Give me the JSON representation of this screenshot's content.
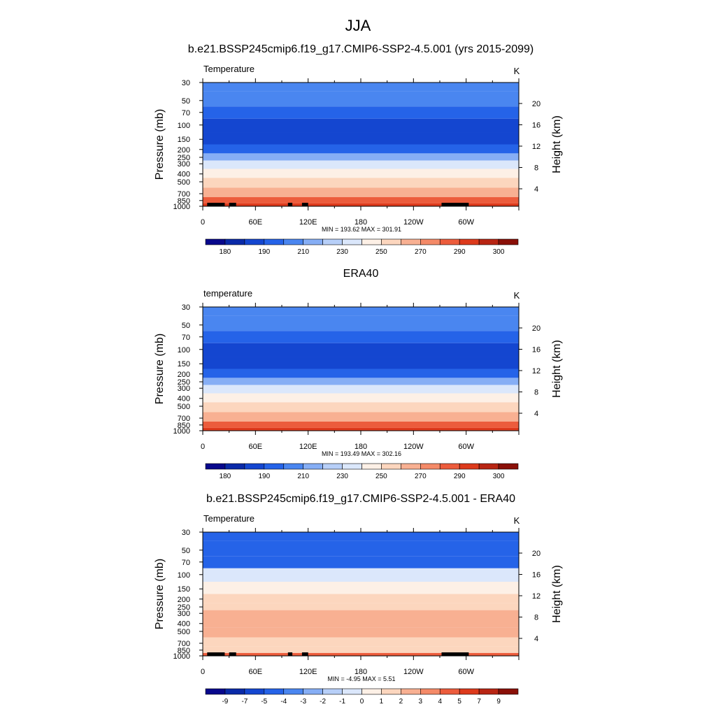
{
  "figure": {
    "title": "JJA"
  },
  "colors": {
    "temp_levels": [
      "#08088c",
      "#0a2aa8",
      "#1446d0",
      "#2563e8",
      "#4a86f0",
      "#86aef5",
      "#b7cff8",
      "#dbe7fb",
      "#fdf0e6",
      "#fcd6be",
      "#f8b092",
      "#f48a68",
      "#ec5c3c",
      "#dd3a1c",
      "#b82513",
      "#8a1008"
    ],
    "diff_levels": [
      "#08088c",
      "#0a2aa8",
      "#1446d0",
      "#2563e8",
      "#4a86f0",
      "#86aef5",
      "#b7cff8",
      "#dbe7fb",
      "#fdf0e6",
      "#fcd6be",
      "#f8b092",
      "#f48a68",
      "#ec5c3c",
      "#dd3a1c",
      "#b82513",
      "#8a1008"
    ],
    "topography": "#000000"
  },
  "chart_data": [
    {
      "type": "heatmap",
      "title": "b.e21.BSSP245cmip6.f19_g17.CMIP6-SSP2-4.5.001 (yrs 2015-2099)",
      "left_label": "Temperature",
      "units": "K",
      "ylabel": "Pressure (mb)",
      "ylabel_right": "Height (km)",
      "x_ticks": [
        "0",
        "60E",
        "120E",
        "180",
        "120W",
        "60W"
      ],
      "y_ticks": [
        "30",
        "50",
        "70",
        "100",
        "150",
        "200",
        "250",
        "300",
        "400",
        "500",
        "700",
        "850",
        "1000"
      ],
      "right_ticks": [
        "20",
        "16",
        "12",
        "8",
        "4"
      ],
      "stats": "MIN = 193.62  MAX = 301.91",
      "colorbar_labels": [
        "180",
        "190",
        "210",
        "230",
        "250",
        "270",
        "290",
        "300"
      ],
      "color_key": "temp_levels",
      "pressure_levels": [
        30,
        50,
        70,
        100,
        150,
        200,
        250,
        300,
        400,
        500,
        700,
        850,
        1000
      ],
      "level_color_index": [
        4,
        4,
        3,
        2,
        2,
        3,
        5,
        7,
        8,
        9,
        10,
        12,
        13
      ],
      "topography_lons": [
        [
          5,
          25
        ],
        [
          30,
          38
        ],
        [
          97,
          102
        ],
        [
          113,
          120
        ],
        [
          272,
          303
        ]
      ]
    },
    {
      "type": "heatmap",
      "title": "ERA40",
      "left_label": "temperature",
      "units": "K",
      "ylabel": "Pressure (mb)",
      "ylabel_right": "Height (km)",
      "x_ticks": [
        "0",
        "60E",
        "120E",
        "180",
        "120W",
        "60W"
      ],
      "y_ticks": [
        "30",
        "50",
        "70",
        "100",
        "150",
        "200",
        "250",
        "300",
        "400",
        "500",
        "700",
        "850",
        "1000"
      ],
      "right_ticks": [
        "20",
        "16",
        "12",
        "8",
        "4"
      ],
      "stats": "MIN = 193.49  MAX = 302.16",
      "colorbar_labels": [
        "180",
        "190",
        "210",
        "230",
        "250",
        "270",
        "290",
        "300"
      ],
      "color_key": "temp_levels",
      "pressure_levels": [
        30,
        50,
        70,
        100,
        150,
        200,
        250,
        300,
        400,
        500,
        700,
        850,
        1000
      ],
      "level_color_index": [
        4,
        4,
        3,
        2,
        2,
        3,
        5,
        7,
        8,
        9,
        10,
        12,
        13
      ],
      "topography_lons": []
    },
    {
      "type": "heatmap",
      "title": "b.e21.BSSP245cmip6.f19_g17.CMIP6-SSP2-4.5.001 - ERA40",
      "left_label": "Temperature",
      "units": "K",
      "ylabel": "Pressure (mb)",
      "ylabel_right": "Height (km)",
      "x_ticks": [
        "0",
        "60E",
        "120E",
        "180",
        "120W",
        "60W"
      ],
      "y_ticks": [
        "30",
        "50",
        "70",
        "100",
        "150",
        "200",
        "250",
        "300",
        "400",
        "500",
        "700",
        "850",
        "1000"
      ],
      "right_ticks": [
        "20",
        "16",
        "12",
        "8",
        "4"
      ],
      "stats": "MIN =  -4.95  MAX =   5.51",
      "colorbar_labels": [
        "-9",
        "-7",
        "-5",
        "-4",
        "-3",
        "-2",
        "-1",
        "0",
        "1",
        "2",
        "3",
        "4",
        "5",
        "7",
        "9"
      ],
      "color_key": "diff_levels",
      "pressure_levels": [
        30,
        50,
        70,
        100,
        150,
        200,
        250,
        300,
        400,
        500,
        700,
        850,
        1000
      ],
      "level_color_index": [
        3,
        3,
        3,
        7,
        8,
        9,
        9,
        10,
        10,
        10,
        9,
        9,
        12
      ],
      "topography_lons": [
        [
          5,
          25
        ],
        [
          30,
          38
        ],
        [
          97,
          102
        ],
        [
          113,
          120
        ],
        [
          272,
          303
        ]
      ]
    }
  ]
}
